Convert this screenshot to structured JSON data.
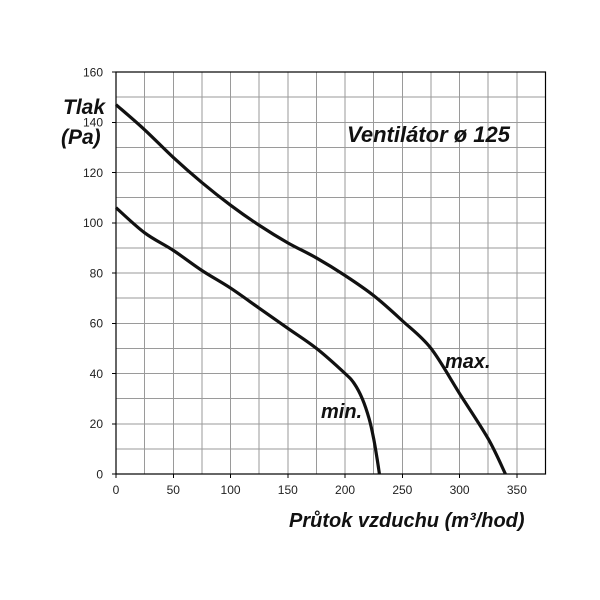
{
  "chart_data": {
    "type": "line",
    "title": "Ventilátor ø 125",
    "xlabel": "Průtok vzduchu (m³/hod)",
    "ylabel": "Tlak",
    "ylabel_unit": "(Pa)",
    "xlim": [
      0,
      375
    ],
    "ylim": [
      0,
      160
    ],
    "x_ticks": [
      0,
      50,
      100,
      150,
      200,
      250,
      300,
      350
    ],
    "y_ticks": [
      0,
      20,
      40,
      60,
      80,
      100,
      120,
      140,
      160
    ],
    "grid": true,
    "x_grid_step": 25,
    "y_grid_step": 10,
    "series": [
      {
        "name": "max.",
        "color": "#111111",
        "x": [
          0,
          25,
          50,
          75,
          100,
          125,
          150,
          175,
          200,
          225,
          250,
          275,
          300,
          325,
          340
        ],
        "y": [
          147,
          137,
          126,
          116,
          107,
          99,
          92,
          86,
          79,
          71,
          61,
          50,
          32,
          14,
          0
        ]
      },
      {
        "name": "min.",
        "color": "#111111",
        "x": [
          0,
          25,
          50,
          75,
          100,
          125,
          150,
          175,
          200,
          208,
          215,
          221,
          225,
          228,
          230
        ],
        "y": [
          106,
          96,
          89,
          81,
          74,
          66,
          58,
          50,
          40,
          36,
          30,
          22,
          14,
          6,
          0
        ]
      }
    ]
  }
}
